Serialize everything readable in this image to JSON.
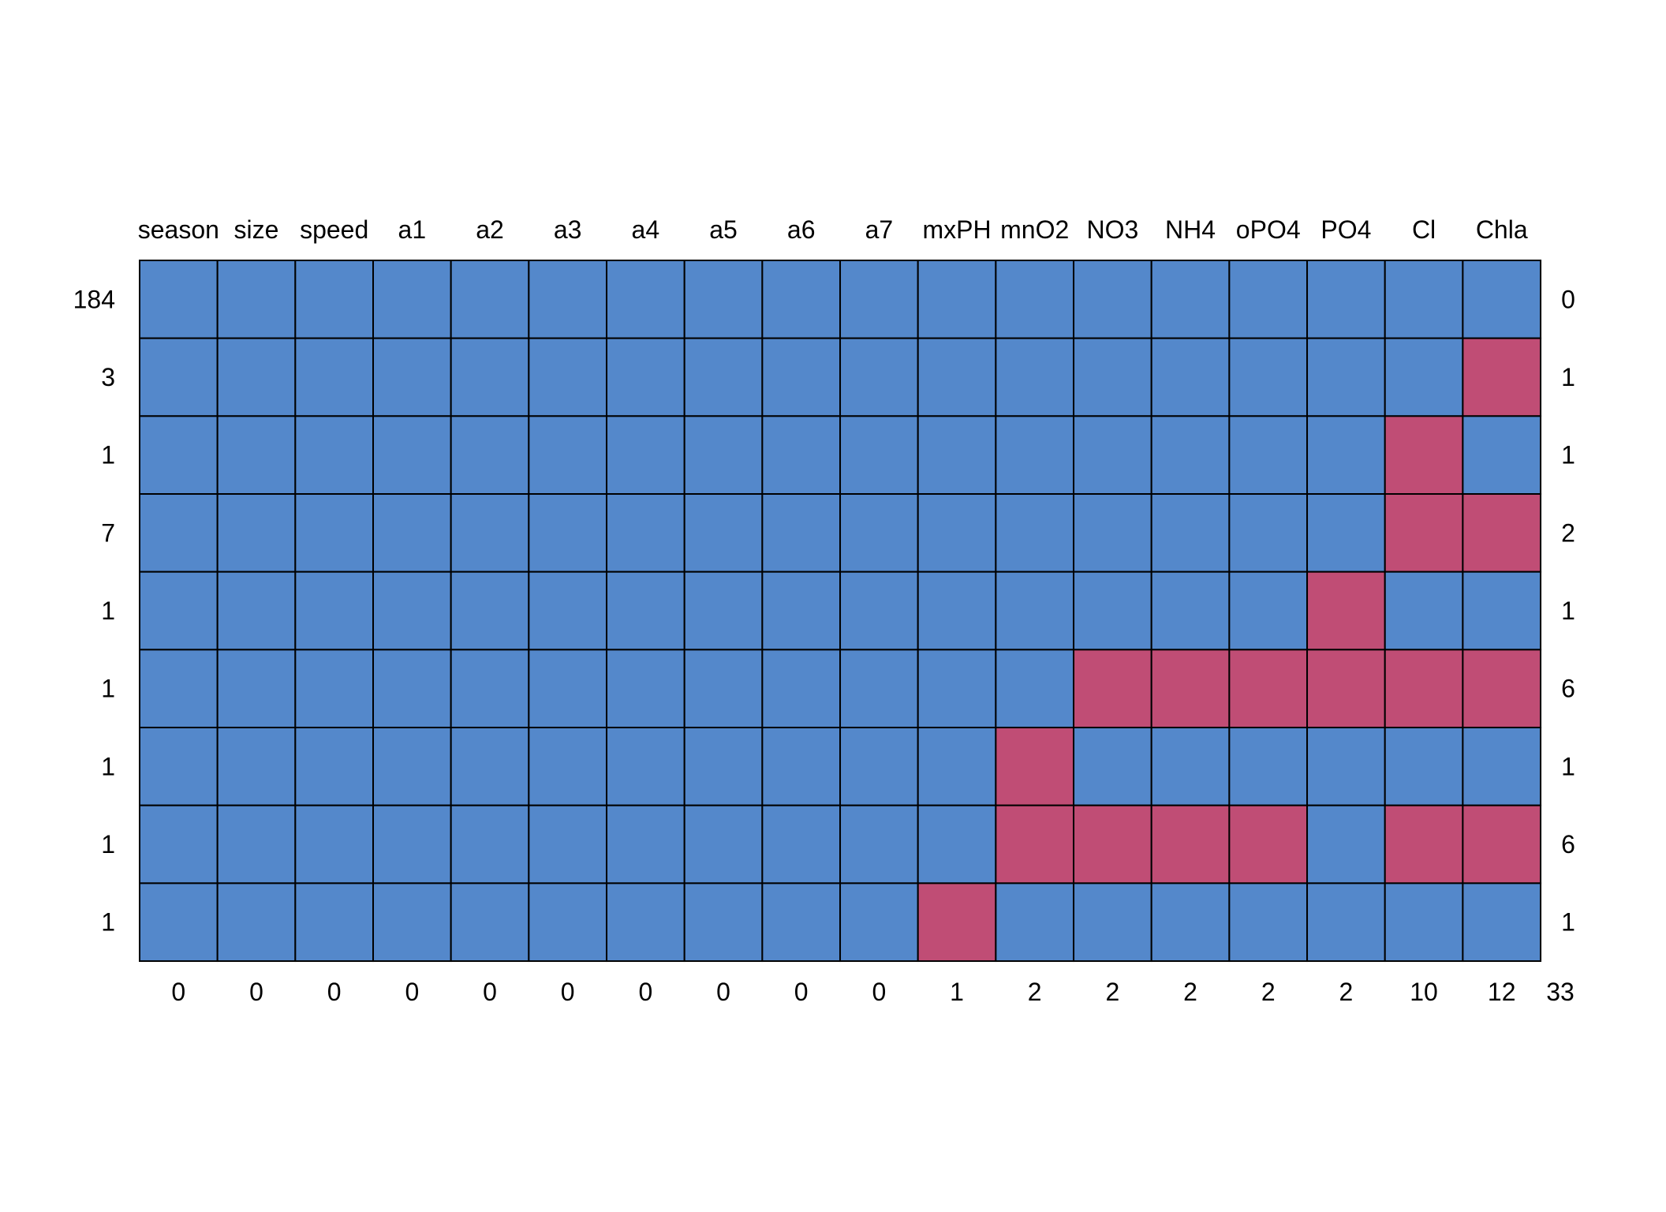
{
  "chart_data": {
    "type": "heatmap",
    "columns": [
      "season",
      "size",
      "speed",
      "a1",
      "a2",
      "a3",
      "a4",
      "a5",
      "a6",
      "a7",
      "mxPH",
      "mnO2",
      "NO3",
      "NH4",
      "oPO4",
      "PO4",
      "Cl",
      "Chla"
    ],
    "row_counts": [
      184,
      3,
      1,
      7,
      1,
      1,
      1,
      1,
      1
    ],
    "row_missing_totals": [
      0,
      1,
      1,
      2,
      1,
      6,
      1,
      6,
      1
    ],
    "column_missing_totals": [
      0,
      0,
      0,
      0,
      0,
      0,
      0,
      0,
      0,
      0,
      1,
      2,
      2,
      2,
      2,
      2,
      10,
      12
    ],
    "grand_total_missing": 33,
    "pattern": [
      [
        1,
        1,
        1,
        1,
        1,
        1,
        1,
        1,
        1,
        1,
        1,
        1,
        1,
        1,
        1,
        1,
        1,
        1
      ],
      [
        1,
        1,
        1,
        1,
        1,
        1,
        1,
        1,
        1,
        1,
        1,
        1,
        1,
        1,
        1,
        1,
        1,
        0
      ],
      [
        1,
        1,
        1,
        1,
        1,
        1,
        1,
        1,
        1,
        1,
        1,
        1,
        1,
        1,
        1,
        1,
        0,
        1
      ],
      [
        1,
        1,
        1,
        1,
        1,
        1,
        1,
        1,
        1,
        1,
        1,
        1,
        1,
        1,
        1,
        1,
        0,
        0
      ],
      [
        1,
        1,
        1,
        1,
        1,
        1,
        1,
        1,
        1,
        1,
        1,
        1,
        1,
        1,
        1,
        0,
        1,
        1
      ],
      [
        1,
        1,
        1,
        1,
        1,
        1,
        1,
        1,
        1,
        1,
        1,
        1,
        0,
        0,
        0,
        0,
        0,
        0
      ],
      [
        1,
        1,
        1,
        1,
        1,
        1,
        1,
        1,
        1,
        1,
        1,
        0,
        1,
        1,
        1,
        1,
        1,
        1
      ],
      [
        1,
        1,
        1,
        1,
        1,
        1,
        1,
        1,
        1,
        1,
        1,
        0,
        0,
        0,
        0,
        1,
        0,
        0
      ],
      [
        1,
        1,
        1,
        1,
        1,
        1,
        1,
        1,
        1,
        1,
        0,
        1,
        1,
        1,
        1,
        1,
        1,
        1
      ]
    ],
    "colors": {
      "observed": "#5488cb",
      "missing": "#c04d75",
      "grid": "#000000"
    }
  }
}
